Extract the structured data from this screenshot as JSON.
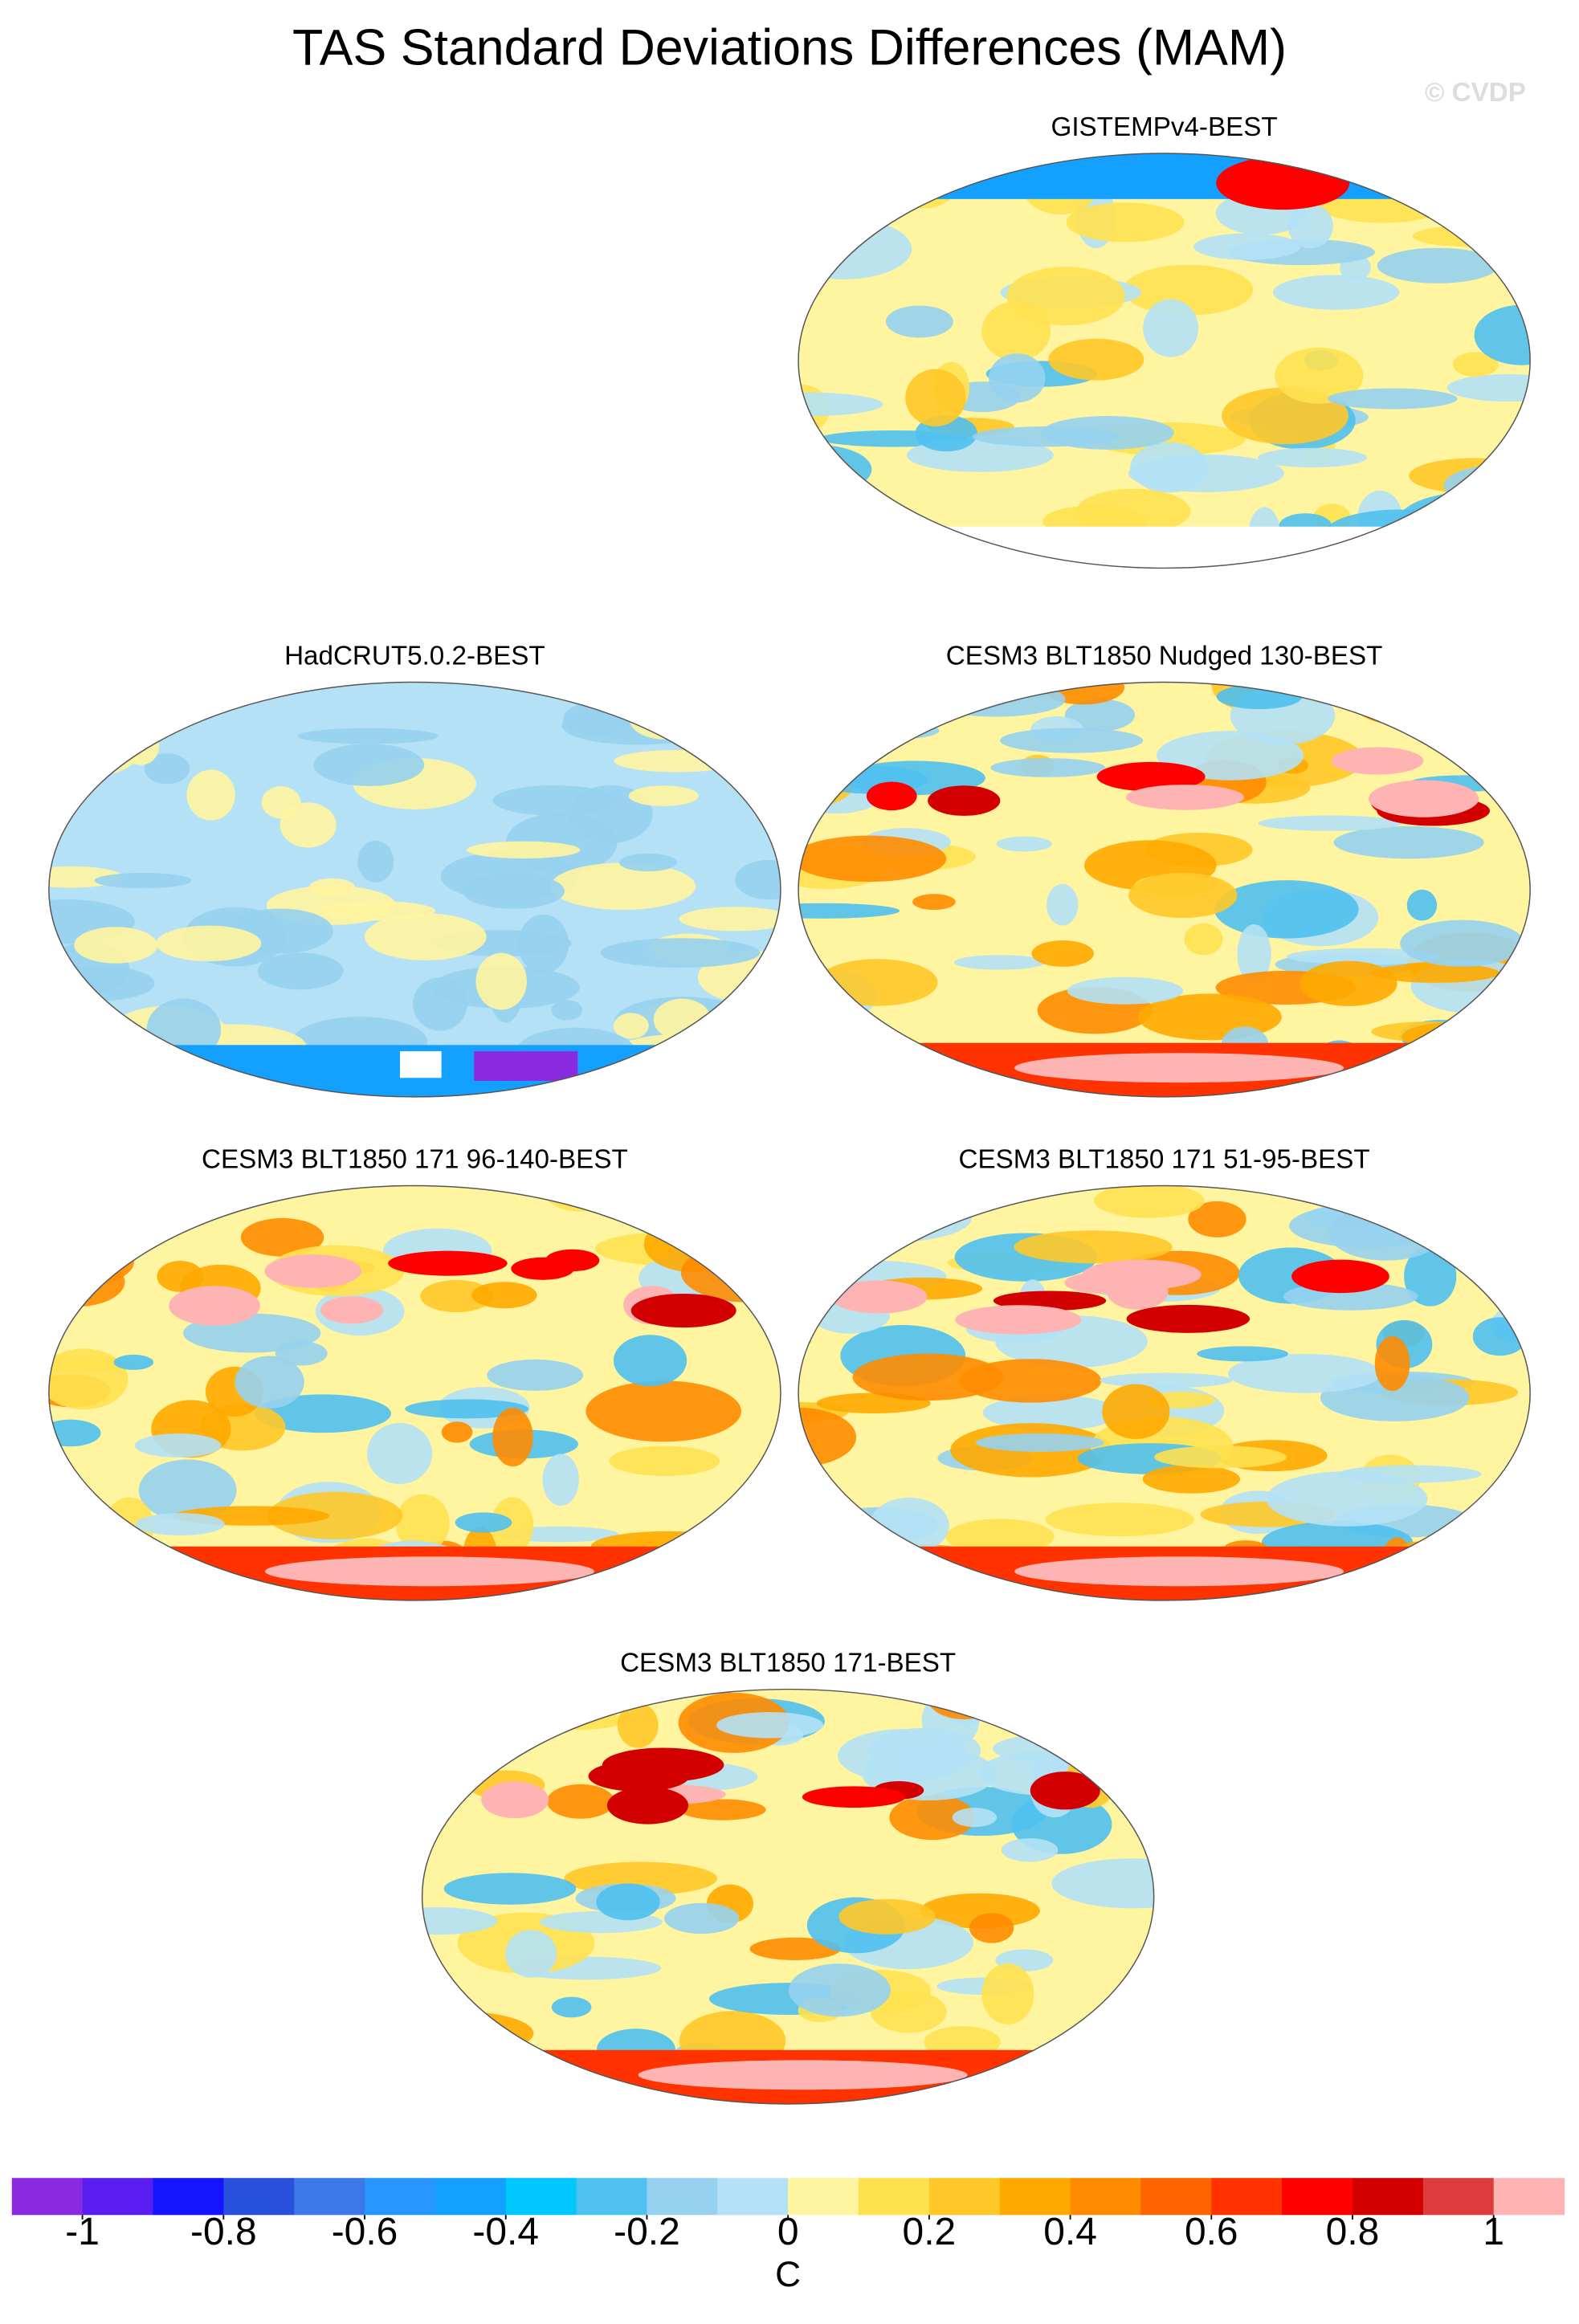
{
  "title": "TAS Standard Deviations Differences (MAM)",
  "watermark": "© CVDP",
  "panels": [
    {
      "title": "GISTEMPv4-BEST"
    },
    {
      "title": "HadCRUT5.0.2-BEST"
    },
    {
      "title": "CESM3 BLT1850 Nudged 130-BEST"
    },
    {
      "title": "CESM3 BLT1850 171 96-140-BEST"
    },
    {
      "title": "CESM3 BLT1850 171 51-95-BEST"
    },
    {
      "title": "CESM3 BLT1850 171-BEST"
    }
  ],
  "colorbar": {
    "colors": [
      "#8a2be2",
      "#5a1ef0",
      "#1414ff",
      "#2850dc",
      "#3c78e6",
      "#2896ff",
      "#14a0ff",
      "#00c8ff",
      "#50c0f0",
      "#96d2f0",
      "#b4e1f5",
      "#fff5a0",
      "#ffe150",
      "#ffc828",
      "#ffaa00",
      "#ff8c00",
      "#ff6400",
      "#ff3200",
      "#ff0000",
      "#d20000",
      "#dc3c3c",
      "#ffb4b4"
    ],
    "ticks": [
      -1,
      -0.8,
      -0.6,
      -0.4,
      -0.2,
      0,
      0.2,
      0.4,
      0.6,
      0.8,
      1
    ],
    "label": "C"
  }
}
